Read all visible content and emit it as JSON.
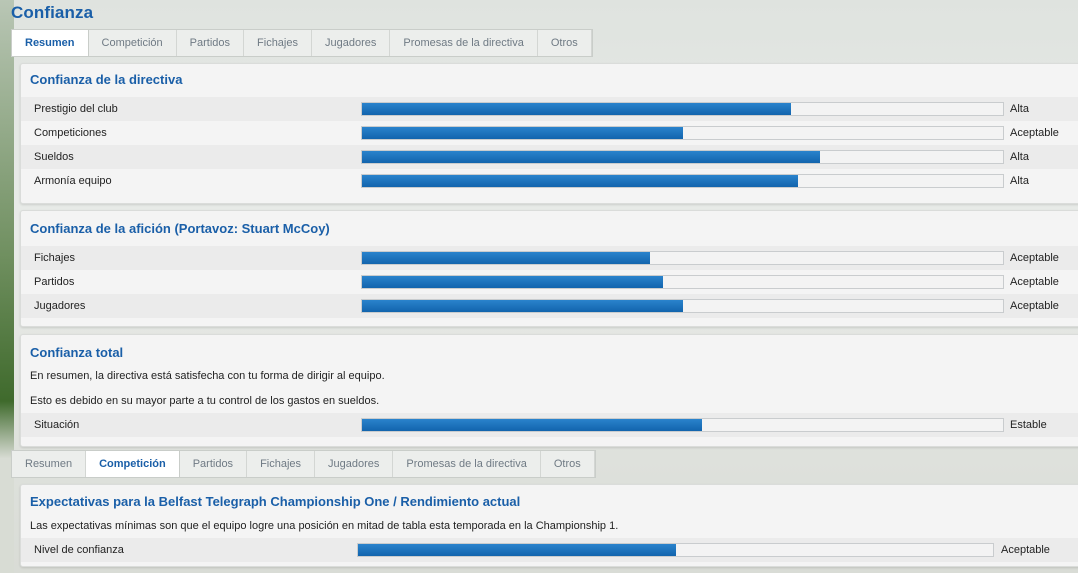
{
  "page_title": "Confianza",
  "tabs": [
    "Resumen",
    "Competición",
    "Partidos",
    "Fichajes",
    "Jugadores",
    "Promesas de la directiva",
    "Otros"
  ],
  "colors": {
    "accent": "#1a5fa8",
    "bar": "#1a6fb8"
  },
  "board": {
    "title": "Confianza de la directiva",
    "rows": [
      {
        "label": "Prestigio del club",
        "level": 0.67,
        "value": "Alta"
      },
      {
        "label": "Competiciones",
        "level": 0.5,
        "value": "Aceptable"
      },
      {
        "label": "Sueldos",
        "level": 0.715,
        "value": "Alta"
      },
      {
        "label": "Armonía equipo",
        "level": 0.68,
        "value": "Alta"
      }
    ]
  },
  "fans": {
    "title": "Confianza de la afición (Portavoz: Stuart McCoy)",
    "rows": [
      {
        "label": "Fichajes",
        "level": 0.45,
        "value": "Aceptable"
      },
      {
        "label": "Partidos",
        "level": 0.47,
        "value": "Aceptable"
      },
      {
        "label": "Jugadores",
        "level": 0.5,
        "value": "Aceptable"
      }
    ]
  },
  "overall": {
    "title": "Confianza total",
    "text1": "En resumen, la directiva está satisfecha con tu forma de dirigir al equipo.",
    "text2": "Esto es debido en su mayor parte a tu control de los gastos en sueldos.",
    "row": {
      "label": "Situación",
      "level": 0.53,
      "value": "Estable"
    }
  },
  "competition": {
    "title": "Expectativas para la Belfast Telegraph Championship One / Rendimiento actual",
    "text": "Las expectativas mínimas son que el equipo logre una posición en mitad de tabla esta temporada en la Championship 1.",
    "row": {
      "label": "Nivel de confianza",
      "level": 0.5,
      "value": "Aceptable"
    }
  }
}
